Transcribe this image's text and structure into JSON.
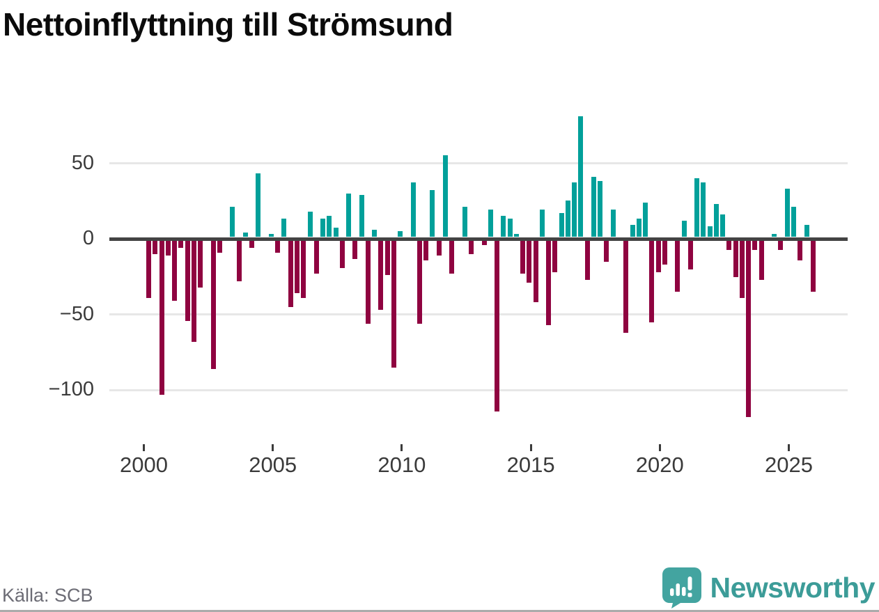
{
  "title": "Nettoinflyttning till Strömsund",
  "source": "Källa: SCB",
  "branding": {
    "logo_text": "Newsworthy",
    "logo_icon": "newsworthy-speech-bubble-chart-icon",
    "logo_color": "#3C9C98"
  },
  "colors": {
    "positive_bar": "#01A09A",
    "negative_bar": "#8F0340",
    "zero_axis": "#434343",
    "gridline": "#e7e7e7",
    "axis_text": "#3a3a3a"
  },
  "chart_data": {
    "type": "bar",
    "title": "Nettoinflyttning till Strömsund",
    "frequency": "quarterly",
    "start": "2000 Q1",
    "end": "2025 Q4",
    "xlabel": "",
    "ylabel": "",
    "ylim": [
      -125,
      88
    ],
    "grid": "horizontal",
    "yticks": [
      50,
      0,
      -50,
      -100
    ],
    "xticks": [
      "2000",
      "2005",
      "2010",
      "2015",
      "2020",
      "2025"
    ],
    "categories": [
      "2000Q1",
      "2000Q2",
      "2000Q3",
      "2000Q4",
      "2001Q1",
      "2001Q2",
      "2001Q3",
      "2001Q4",
      "2002Q1",
      "2002Q2",
      "2002Q3",
      "2002Q4",
      "2003Q1",
      "2003Q2",
      "2003Q3",
      "2003Q4",
      "2004Q1",
      "2004Q2",
      "2004Q3",
      "2004Q4",
      "2005Q1",
      "2005Q2",
      "2005Q3",
      "2005Q4",
      "2006Q1",
      "2006Q2",
      "2006Q3",
      "2006Q4",
      "2007Q1",
      "2007Q2",
      "2007Q3",
      "2007Q4",
      "2008Q1",
      "2008Q2",
      "2008Q3",
      "2008Q4",
      "2009Q1",
      "2009Q2",
      "2009Q3",
      "2009Q4",
      "2010Q1",
      "2010Q2",
      "2010Q3",
      "2010Q4",
      "2011Q1",
      "2011Q2",
      "2011Q3",
      "2011Q4",
      "2012Q1",
      "2012Q2",
      "2012Q3",
      "2012Q4",
      "2013Q1",
      "2013Q2",
      "2013Q3",
      "2013Q4",
      "2014Q1",
      "2014Q2",
      "2014Q3",
      "2014Q4",
      "2015Q1",
      "2015Q2",
      "2015Q3",
      "2015Q4",
      "2016Q1",
      "2016Q2",
      "2016Q3",
      "2016Q4",
      "2017Q1",
      "2017Q2",
      "2017Q3",
      "2017Q4",
      "2018Q1",
      "2018Q2",
      "2018Q3",
      "2018Q4",
      "2019Q1",
      "2019Q2",
      "2019Q3",
      "2019Q4",
      "2020Q1",
      "2020Q2",
      "2020Q3",
      "2020Q4",
      "2021Q1",
      "2021Q2",
      "2021Q3",
      "2021Q4",
      "2022Q1",
      "2022Q2",
      "2022Q3",
      "2022Q4",
      "2023Q1",
      "2023Q2",
      "2023Q3",
      "2023Q4",
      "2024Q1",
      "2024Q2",
      "2024Q3",
      "2024Q4",
      "2025Q1",
      "2025Q2",
      "2025Q3",
      "2025Q4"
    ],
    "values": [
      -38,
      -9,
      -102,
      -10,
      -40,
      -5,
      -53,
      -67,
      -31,
      0,
      -85,
      -8,
      0,
      20,
      -27,
      3,
      -5,
      42,
      0,
      2,
      -8,
      12,
      -44,
      -35,
      -38,
      17,
      -22,
      12,
      14,
      6,
      -18,
      29,
      -12,
      28,
      -55,
      5,
      -46,
      -23,
      -84,
      4,
      0,
      36,
      -55,
      -13,
      31,
      -10,
      54,
      -22,
      0,
      20,
      -9,
      0,
      -3,
      18,
      -113,
      14,
      12,
      2,
      -22,
      -28,
      -41,
      18,
      -56,
      -21,
      16,
      24,
      36,
      80,
      -26,
      40,
      37,
      -14,
      18,
      0,
      -61,
      8,
      12,
      23,
      -54,
      -21,
      -16,
      0,
      -34,
      11,
      -19,
      39,
      36,
      7,
      22,
      15,
      -6,
      -24,
      -38,
      -117,
      -6,
      -26,
      0,
      2,
      -6,
      32,
      20,
      -13,
      8,
      -34
    ]
  }
}
